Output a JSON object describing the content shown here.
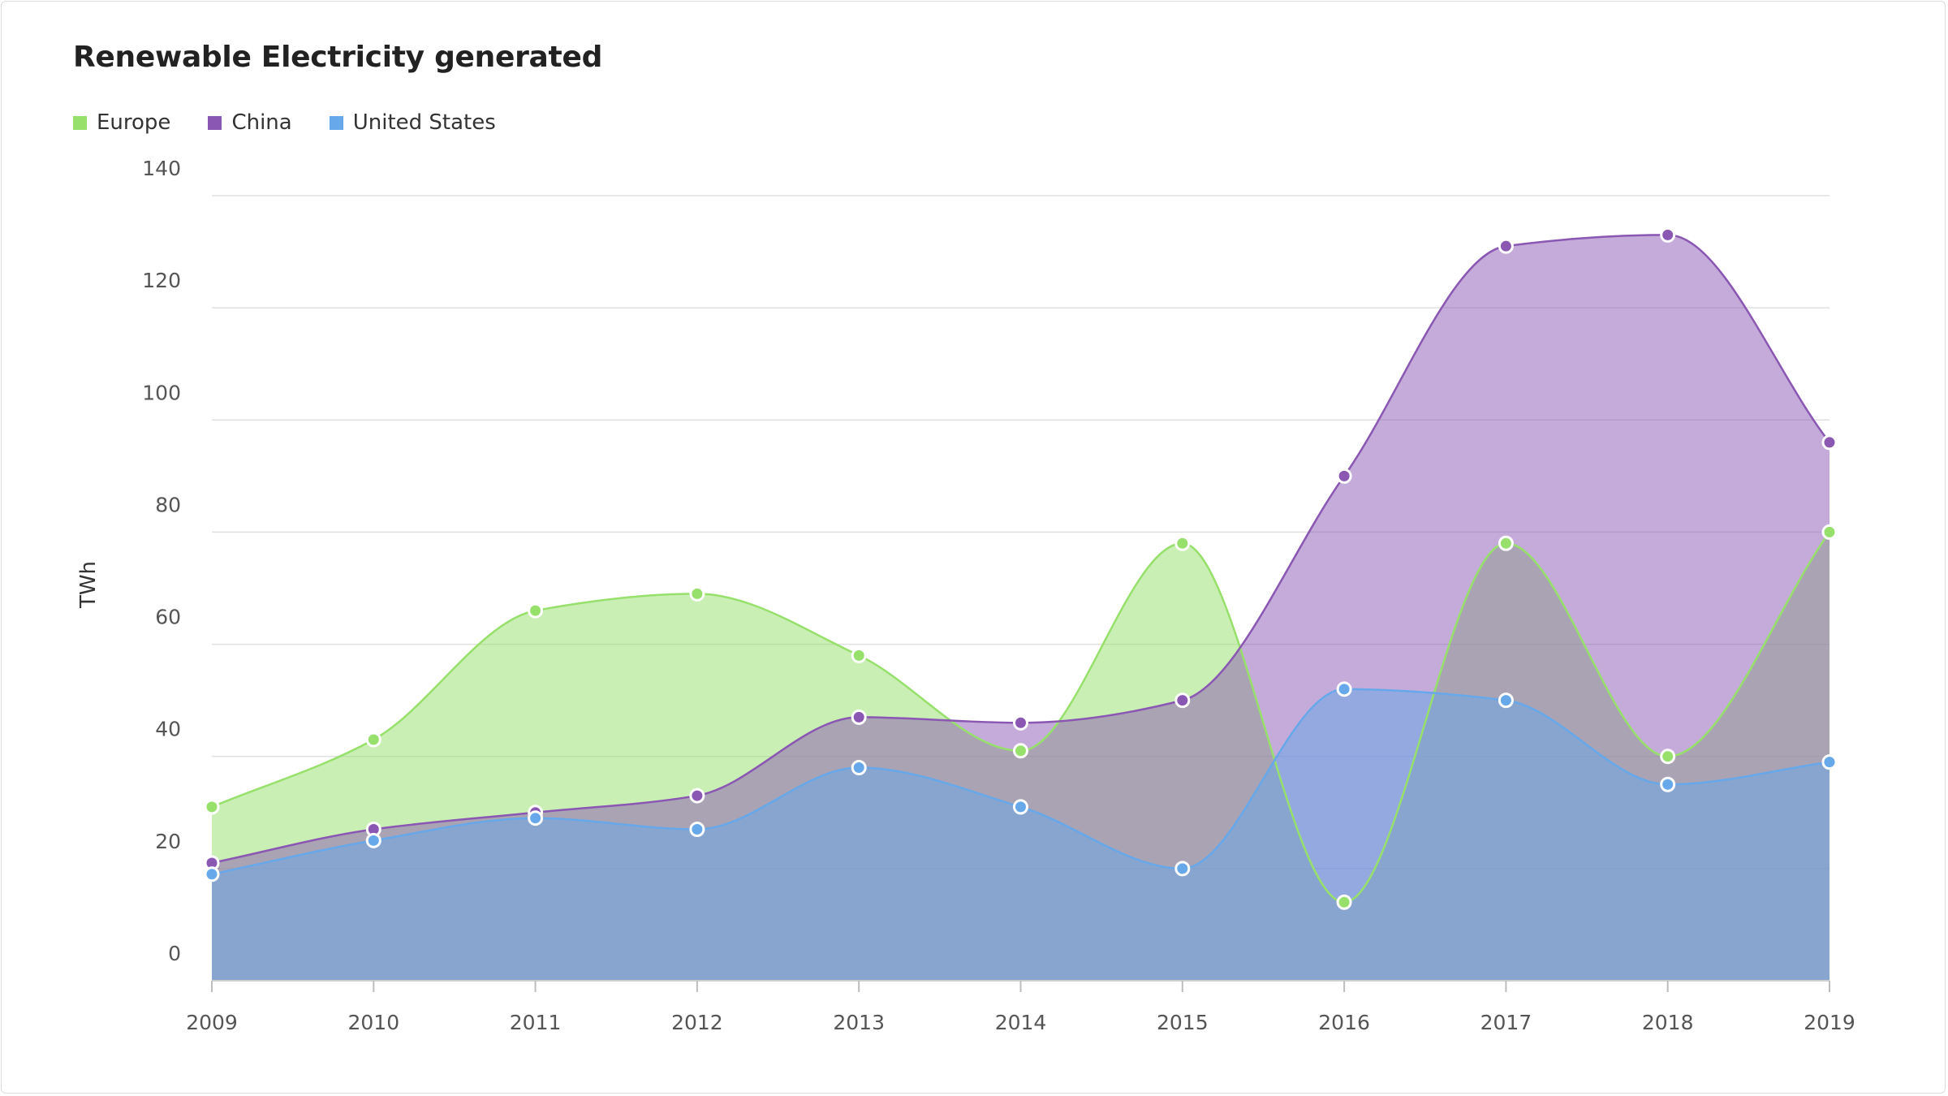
{
  "chart_data": {
    "type": "area",
    "title": "Renewable Electricity generated",
    "xlabel": "",
    "ylabel": "TWh",
    "categories": [
      "2009",
      "2010",
      "2011",
      "2012",
      "2013",
      "2014",
      "2015",
      "2016",
      "2017",
      "2018",
      "2019"
    ],
    "ylim": [
      0,
      140
    ],
    "y_ticks": [
      0,
      20,
      40,
      60,
      80,
      100,
      120,
      140
    ],
    "grid": true,
    "legend_position": "top-left",
    "series": [
      {
        "name": "Europe",
        "color": "#96e06b",
        "values": [
          31,
          43,
          66,
          69,
          58,
          41,
          78,
          14,
          78,
          40,
          80
        ]
      },
      {
        "name": "China",
        "color": "#8a57b3",
        "values": [
          21,
          27,
          30,
          33,
          47,
          46,
          50,
          90,
          131,
          133,
          96
        ]
      },
      {
        "name": "United States",
        "color": "#66a8ea",
        "values": [
          19,
          25,
          29,
          27,
          38,
          31,
          20,
          52,
          50,
          35,
          39
        ]
      }
    ]
  }
}
